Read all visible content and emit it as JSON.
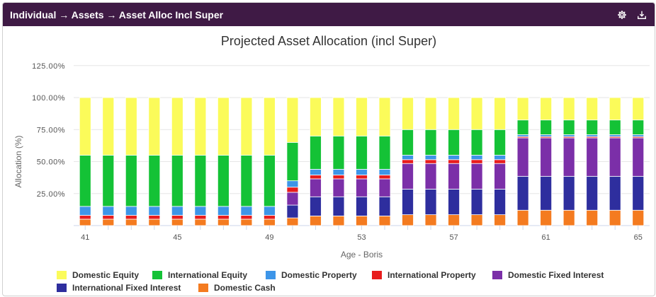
{
  "header": {
    "breadcrumb": "Individual → Assets → Asset Alloc Incl Super",
    "icons": [
      "gear-icon",
      "export-icon"
    ]
  },
  "chart_data": {
    "type": "bar",
    "stacked": true,
    "title": "Projected Asset Allocation (incl Super)",
    "xlabel": "Age - Boris",
    "ylabel": "Allocation (%)",
    "ylim": [
      0,
      125
    ],
    "y_ticks": [
      "125.00%",
      "100.00%",
      "75.00%",
      "50.00%",
      "25.00%"
    ],
    "y_tick_values": [
      125,
      100,
      75,
      50,
      25
    ],
    "categories": [
      41,
      42,
      43,
      44,
      45,
      46,
      47,
      48,
      49,
      50,
      51,
      52,
      53,
      54,
      55,
      56,
      57,
      58,
      59,
      60,
      61,
      62,
      63,
      64,
      65
    ],
    "x_tick_labels": [
      "41",
      "45",
      "49",
      "53",
      "57",
      "61",
      "65"
    ],
    "x_tick_values": [
      41,
      45,
      49,
      53,
      57,
      61,
      65
    ],
    "grid": true,
    "legend_position": "bottom",
    "series": [
      {
        "name": "Domestic Cash",
        "color": "#f47b20",
        "values": [
          5,
          5,
          5,
          5,
          5,
          5,
          5,
          5,
          5,
          6,
          7.5,
          7.5,
          7.5,
          7.5,
          8.5,
          8.5,
          8.5,
          8.5,
          8.5,
          12,
          12,
          12,
          12,
          12,
          12
        ]
      },
      {
        "name": "International Fixed Interest",
        "color": "#2e2e9e",
        "values": [
          0,
          0,
          0,
          0,
          0,
          0,
          0,
          0,
          0,
          10,
          15,
          15,
          15,
          15,
          20,
          20,
          20,
          20,
          20,
          26.5,
          26.5,
          26.5,
          26.5,
          26.5,
          26.5
        ]
      },
      {
        "name": "Domestic Fixed Interest",
        "color": "#7b2fa8",
        "values": [
          0,
          0,
          0,
          0,
          0,
          0,
          0,
          0,
          0,
          10,
          14,
          14,
          14,
          14,
          20,
          20,
          20,
          20,
          20,
          30,
          30,
          30,
          30,
          30,
          30
        ]
      },
      {
        "name": "International Property",
        "color": "#e81d1d",
        "values": [
          3,
          3,
          3,
          3,
          3,
          3,
          3,
          3,
          3,
          4,
          3,
          3,
          3,
          3,
          3,
          3,
          3,
          3,
          3,
          1,
          1,
          1,
          1,
          1,
          1
        ]
      },
      {
        "name": "Domestic Property",
        "color": "#3d95e8",
        "values": [
          7,
          7,
          7,
          7,
          7,
          7,
          7,
          7,
          7,
          5,
          4.5,
          4.5,
          4.5,
          4.5,
          3.5,
          3.5,
          3.5,
          3.5,
          3.5,
          1.5,
          1.5,
          1.5,
          1.5,
          1.5,
          1.5
        ]
      },
      {
        "name": "International Equity",
        "color": "#14c236",
        "values": [
          40,
          40,
          40,
          40,
          40,
          40,
          40,
          40,
          40,
          30,
          26,
          26,
          26,
          26,
          20,
          20,
          20,
          20,
          20,
          11.5,
          11.5,
          11.5,
          11.5,
          11.5,
          11.5
        ]
      },
      {
        "name": "Domestic Equity",
        "color": "#fbfb5a",
        "values": [
          45,
          45,
          45,
          45,
          45,
          45,
          45,
          45,
          45,
          35,
          30,
          30,
          30,
          30,
          25,
          25,
          25,
          25,
          25,
          17.5,
          17.5,
          17.5,
          17.5,
          17.5,
          17.5
        ]
      }
    ]
  },
  "legend": {
    "items": [
      {
        "label": "Domestic Equity",
        "color": "#fbfb5a"
      },
      {
        "label": "International Equity",
        "color": "#14c236"
      },
      {
        "label": "Domestic Property",
        "color": "#3d95e8"
      },
      {
        "label": "International Property",
        "color": "#e81d1d"
      },
      {
        "label": "Domestic Fixed Interest",
        "color": "#7b2fa8"
      },
      {
        "label": "International Fixed Interest",
        "color": "#2e2e9e"
      },
      {
        "label": "Domestic Cash",
        "color": "#f47b20"
      }
    ]
  }
}
